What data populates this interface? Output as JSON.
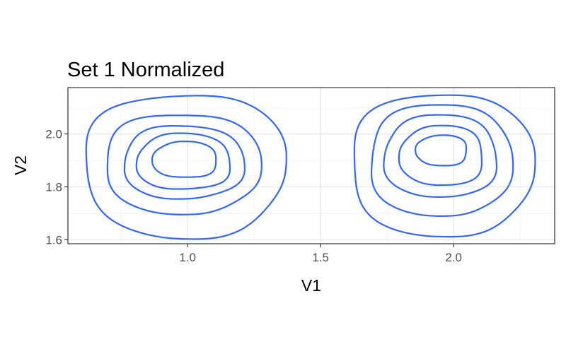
{
  "chart_data": {
    "type": "contour",
    "title": "Set 1 Normalized",
    "xlabel": "V1",
    "ylabel": "V2",
    "xlim": [
      0.55,
      2.38
    ],
    "ylim": [
      1.585,
      2.175
    ],
    "x_ticks": [
      {
        "value": 1.0,
        "label": "1.0"
      },
      {
        "value": 1.5,
        "label": "1.5"
      },
      {
        "value": 2.0,
        "label": "2.0"
      }
    ],
    "y_ticks": [
      {
        "value": 1.6,
        "label": "1.6"
      },
      {
        "value": 1.8,
        "label": "1.8"
      },
      {
        "value": 2.0,
        "label": "2.0"
      }
    ],
    "grid": true,
    "theme": "bw",
    "line_color": "#3366FF",
    "clusters": [
      {
        "center": [
          0.99,
          1.9
        ],
        "levels": [
          {
            "cx": 0.985,
            "cy": 1.885,
            "rx_left": 0.37,
            "rx_right": 0.38,
            "ry_top": 0.265,
            "ry_bottom": 0.275
          },
          {
            "cx": 0.99,
            "cy": 1.885,
            "rx_left": 0.3,
            "rx_right": 0.28,
            "ry_top": 0.19,
            "ry_bottom": 0.185
          },
          {
            "cx": 0.99,
            "cy": 1.89,
            "rx_left": 0.23,
            "rx_right": 0.22,
            "ry_top": 0.14,
            "ry_bottom": 0.135
          },
          {
            "cx": 0.99,
            "cy": 1.89,
            "rx_left": 0.18,
            "rx_right": 0.17,
            "ry_top": 0.11,
            "ry_bottom": 0.1
          },
          {
            "cx": 0.99,
            "cy": 1.9,
            "rx_left": 0.12,
            "rx_right": 0.12,
            "ry_top": 0.07,
            "ry_bottom": 0.065
          }
        ]
      },
      {
        "center": [
          1.96,
          1.93
        ],
        "levels": [
          {
            "cx": 1.975,
            "cy": 1.885,
            "rx_left": 0.36,
            "rx_right": 0.32,
            "ry_top": 0.265,
            "ry_bottom": 0.27
          },
          {
            "cx": 1.965,
            "cy": 1.9,
            "rx_left": 0.28,
            "rx_right": 0.25,
            "ry_top": 0.21,
            "ry_bottom": 0.21
          },
          {
            "cx": 1.96,
            "cy": 1.91,
            "rx_left": 0.22,
            "rx_right": 0.2,
            "ry_top": 0.16,
            "ry_bottom": 0.15
          },
          {
            "cx": 1.96,
            "cy": 1.915,
            "rx_left": 0.16,
            "rx_right": 0.15,
            "ry_top": 0.115,
            "ry_bottom": 0.11
          },
          {
            "cx": 1.96,
            "cy": 1.935,
            "rx_left": 0.1,
            "rx_right": 0.09,
            "ry_top": 0.06,
            "ry_bottom": 0.055
          }
        ]
      }
    ]
  }
}
